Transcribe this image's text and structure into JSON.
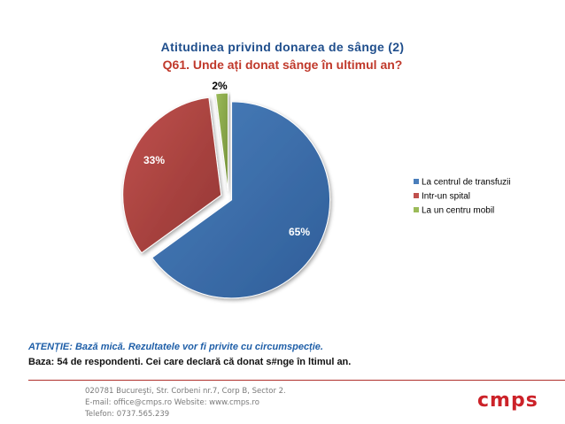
{
  "chart_data": {
    "type": "pie",
    "title": "Atitudinea privind donarea de sânge (2)",
    "subtitle": "Q61. Unde ați donat sânge în ultimul an?",
    "categories": [
      "La centrul de transfuzii",
      "Intr-un spital",
      "La un centru mobil"
    ],
    "values": [
      65,
      33,
      2
    ],
    "value_labels": [
      "65%",
      "33%",
      "2%"
    ],
    "colors": [
      "#4a7ebb",
      "#c0504d",
      "#9bbb59"
    ],
    "legend_position": "right"
  },
  "note": {
    "warning": "ATENȚIE: Bază mică. Rezultatele vor fi privite cu circumspecție.",
    "base": "Baza: 54 de respondenti. Cei care declară că donat s#nge în ltimul an."
  },
  "footer": {
    "address": "020781 Bucureşti, Str. Corbeni nr.7, Corp B, Sector 2.",
    "contact": "E-mail: office@cmps.ro Website: www.cmps.ro",
    "phone": "Telefon: 0737.565.239",
    "logo": "cmps"
  }
}
